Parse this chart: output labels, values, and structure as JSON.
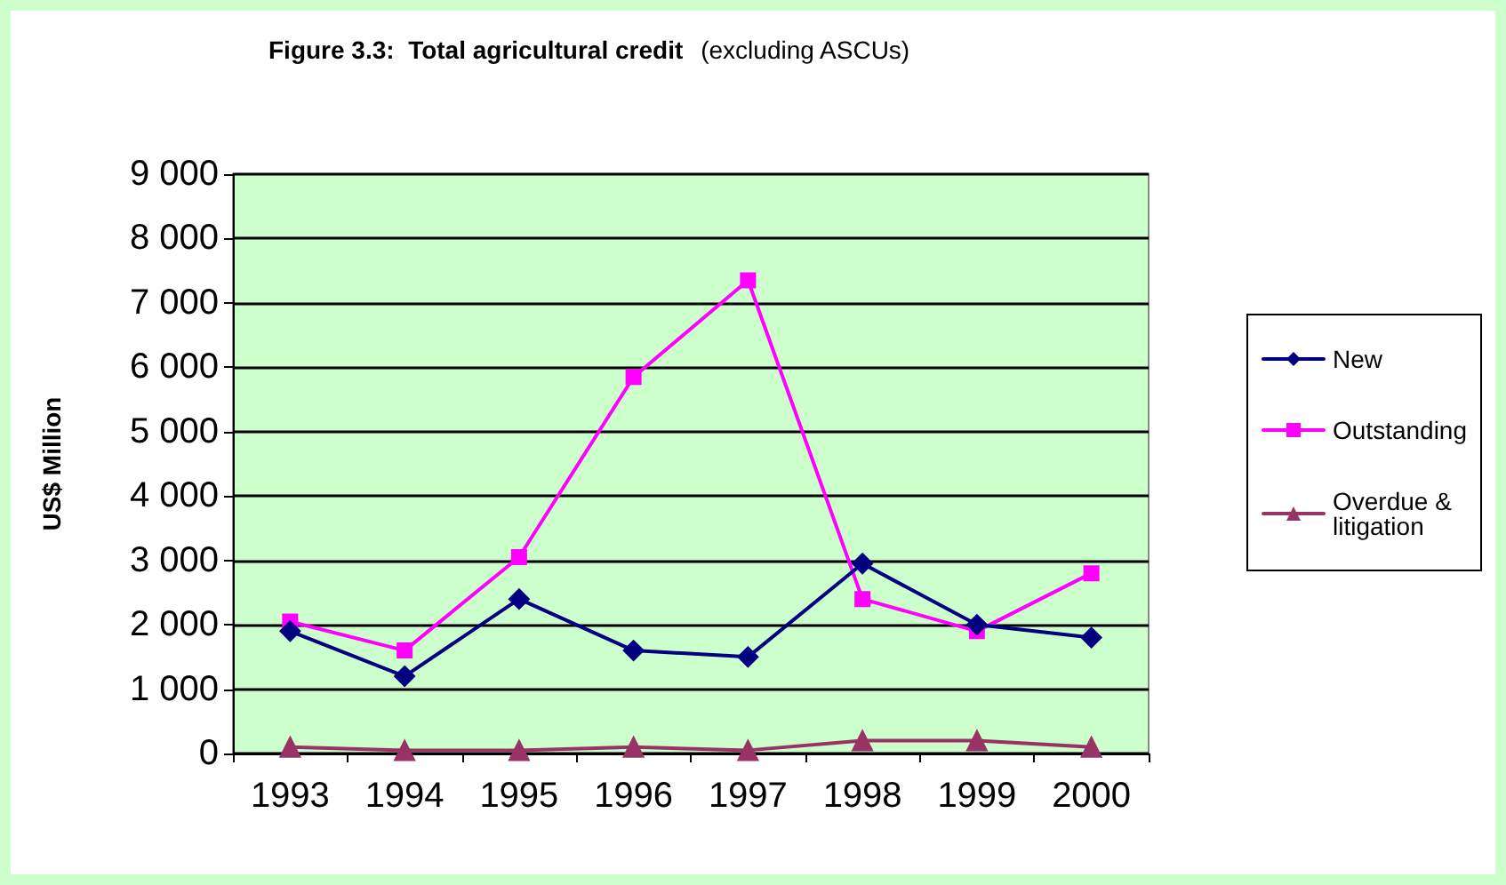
{
  "chart_data": {
    "type": "line",
    "title": "Figure 3.3:  Total agricultural credit",
    "subtitle": "(excluding ASCUs)",
    "ylabel": "US$ Million",
    "categories": [
      "1993",
      "1994",
      "1995",
      "1996",
      "1997",
      "1998",
      "1999",
      "2000"
    ],
    "series": [
      {
        "name": "New",
        "color": "#000080",
        "marker": "diamond",
        "values": [
          1900,
          1200,
          2400,
          1600,
          1500,
          2950,
          2000,
          1800
        ]
      },
      {
        "name": "Outstanding",
        "color": "#ff00ff",
        "marker": "square",
        "values": [
          2050,
          1600,
          3050,
          5850,
          7350,
          2400,
          1900,
          2800
        ]
      },
      {
        "name": "Overdue & litigation",
        "color": "#993366",
        "marker": "triangle",
        "values": [
          100,
          50,
          50,
          100,
          50,
          200,
          200,
          100
        ]
      }
    ],
    "ylim": [
      0,
      9000
    ],
    "yticks": [
      {
        "value": 0,
        "label": "0"
      },
      {
        "value": 1000,
        "label": "1 000"
      },
      {
        "value": 2000,
        "label": "2 000"
      },
      {
        "value": 3000,
        "label": "3 000"
      },
      {
        "value": 4000,
        "label": "4 000"
      },
      {
        "value": 5000,
        "label": "5 000"
      },
      {
        "value": 6000,
        "label": "6 000"
      },
      {
        "value": 7000,
        "label": "7 000"
      },
      {
        "value": 8000,
        "label": "8 000"
      },
      {
        "value": 9000,
        "label": "9 000"
      }
    ],
    "grid": "y",
    "legend": "right",
    "line_style": "solid"
  }
}
